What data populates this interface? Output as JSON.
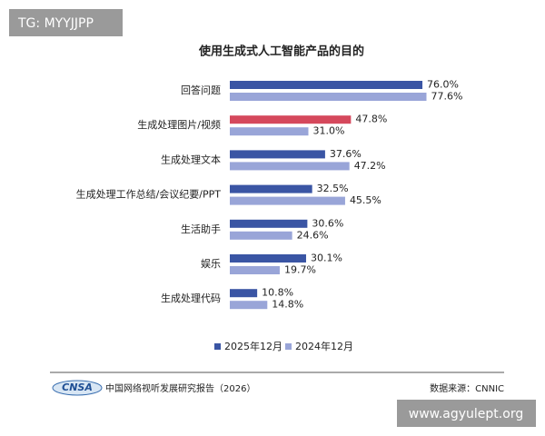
{
  "chart_data": {
    "type": "hbar",
    "title": "使用生成式人工智能产品的目的",
    "categories": [
      "回答问题",
      "生成处理图片/视频",
      "生成处理文本",
      "生成处理工作总结/会议纪要/PPT",
      "生活助手",
      "娱乐",
      "生成处理代码"
    ],
    "series": [
      {
        "name": "2025年12月",
        "color": "#3a55a4",
        "bar_colors": [
          "#3a55a4",
          "#d5485c",
          "#3a55a4",
          "#3a55a4",
          "#3a55a4",
          "#3a55a4",
          "#3a55a4"
        ],
        "values": [
          76.0,
          47.8,
          37.6,
          32.5,
          30.6,
          30.1,
          10.8
        ],
        "value_labels": [
          "76.0%",
          "47.8%",
          "37.6%",
          "32.5%",
          "30.6%",
          "30.1%",
          "10.8%"
        ]
      },
      {
        "name": "2024年12月",
        "color": "#99a5d8",
        "values": [
          77.6,
          31.0,
          47.2,
          45.5,
          24.6,
          19.7,
          14.8
        ],
        "value_labels": [
          "77.6%",
          "31.0%",
          "47.2%",
          "45.5%",
          "24.6%",
          "19.7%",
          "14.8%"
        ]
      }
    ],
    "logo": "CNSA",
    "report": "中国网络视听发展研究报告（2026）",
    "source": "数据来源：CNNIC"
  },
  "watermarks": [
    "TG: MYYJJPP",
    "www.agyulept.org"
  ]
}
